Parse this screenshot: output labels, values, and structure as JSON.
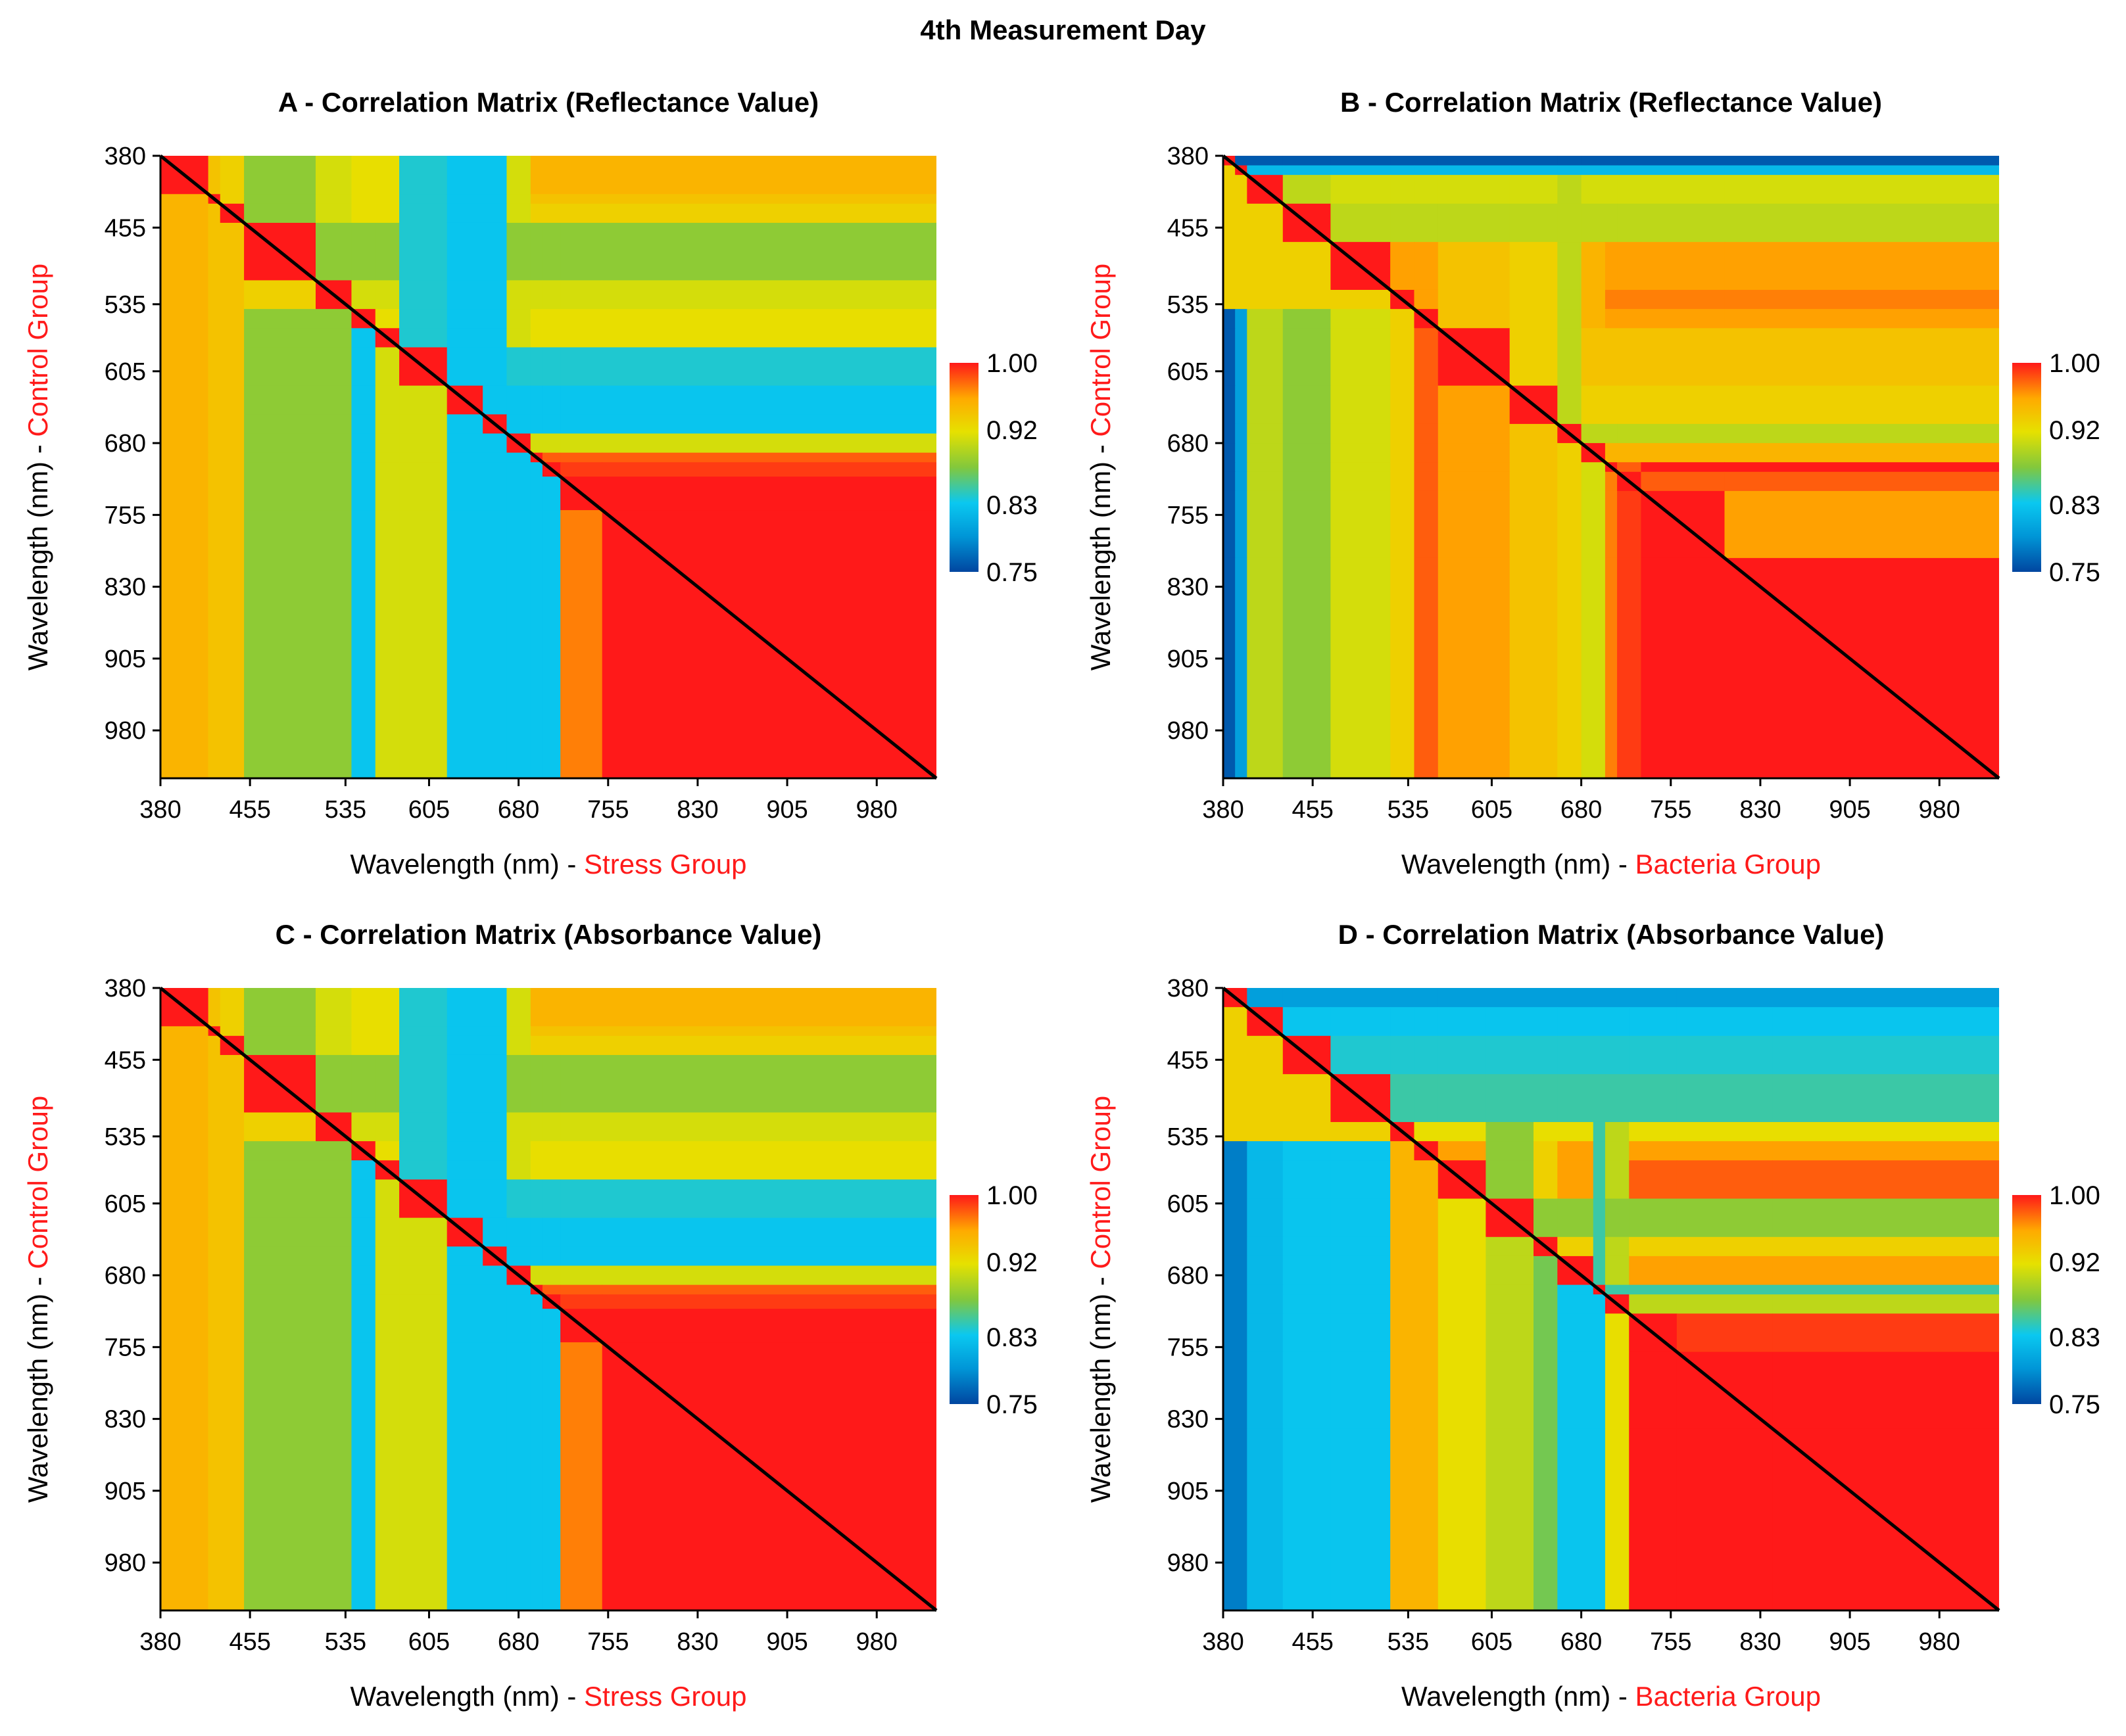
{
  "figure_title": "4th Measurement Day",
  "chart_data": [
    {
      "type": "heatmap",
      "title": "A - Correlation Matrix (Reflectance Value)",
      "xlabel": "Wavelength (nm) - ",
      "xlabel_group": "Stress Group",
      "ylabel": "Wavelength (nm) - ",
      "ylabel_group": "Control Group",
      "x_ticks": [
        "380",
        "455",
        "535",
        "605",
        "680",
        "755",
        "830",
        "905",
        "980"
      ],
      "y_ticks": [
        "380",
        "455",
        "535",
        "605",
        "680",
        "755",
        "830",
        "905",
        "980"
      ],
      "range": [
        380,
        1030
      ],
      "colorbar": {
        "ticks": [
          "1.00",
          "0.92",
          "0.83",
          "0.75"
        ],
        "min": 0.75,
        "max": 1.0
      },
      "diagonal_line": true,
      "band_edges": [
        380,
        420,
        430,
        450,
        510,
        540,
        560,
        580,
        620,
        650,
        670,
        690,
        700,
        715,
        750,
        1030
      ],
      "band_values": [
        0.95,
        0.94,
        0.93,
        0.88,
        0.91,
        0.92,
        0.92,
        0.84,
        0.83,
        0.83,
        0.91,
        0.98,
        0.99,
        1.0,
        1.0
      ],
      "lower_segments": [
        {
          "start": 380,
          "end": 720,
          "values": [
            0.95,
            0.94,
            0.94,
            0.88,
            0.88,
            0.83,
            0.91,
            0.91,
            0.83,
            0.83,
            0.83,
            0.83,
            0.83,
            0.97,
            0.99
          ]
        },
        {
          "start": 720,
          "end": 1030,
          "values": [
            1.0
          ]
        }
      ]
    },
    {
      "type": "heatmap",
      "title": "B - Correlation Matrix (Reflectance Value)",
      "xlabel": "Wavelength (nm) - ",
      "xlabel_group": "Bacteria Group",
      "ylabel": "Wavelength (nm) - ",
      "ylabel_group": "Control Group",
      "x_ticks": [
        "380",
        "455",
        "535",
        "605",
        "680",
        "755",
        "830",
        "905",
        "980"
      ],
      "y_ticks": [
        "380",
        "455",
        "535",
        "605",
        "680",
        "755",
        "830",
        "905",
        "980"
      ],
      "range": [
        380,
        1030
      ],
      "colorbar": {
        "ticks": [
          "1.00",
          "0.92",
          "0.83",
          "0.75"
        ],
        "min": 0.75,
        "max": 1.0
      },
      "diagonal_line": true,
      "band_edges": [
        380,
        390,
        400,
        430,
        470,
        520,
        540,
        560,
        620,
        660,
        680,
        700,
        710,
        730,
        800,
        1030
      ],
      "band_values": [
        0.76,
        0.82,
        0.91,
        0.9,
        0.96,
        0.97,
        0.96,
        0.94,
        0.93,
        0.9,
        0.95,
        1.0,
        0.98,
        0.96,
        0.95
      ],
      "lower_segments": [
        {
          "start": 380,
          "end": 730,
          "values": [
            0.76,
            0.8,
            0.9,
            0.88,
            0.91,
            0.93,
            0.98,
            0.96,
            0.94,
            0.93,
            0.91,
            0.97,
            0.99,
            0.99,
            0.99
          ]
        },
        {
          "start": 730,
          "end": 1030,
          "values": [
            1.0
          ]
        }
      ]
    },
    {
      "type": "heatmap",
      "title": "C - Correlation Matrix (Absorbance Value)",
      "xlabel": "Wavelength (nm) - ",
      "xlabel_group": "Stress Group",
      "ylabel": "Wavelength (nm) - ",
      "ylabel_group": "Control Group",
      "x_ticks": [
        "380",
        "455",
        "535",
        "605",
        "680",
        "755",
        "830",
        "905",
        "980"
      ],
      "y_ticks": [
        "380",
        "455",
        "535",
        "605",
        "680",
        "755",
        "830",
        "905",
        "980"
      ],
      "range": [
        380,
        1030
      ],
      "colorbar": {
        "ticks": [
          "1.00",
          "0.92",
          "0.83",
          "0.75"
        ],
        "min": 0.75,
        "max": 1.0
      },
      "diagonal_line": true,
      "band_edges": [
        380,
        420,
        430,
        450,
        510,
        540,
        560,
        580,
        620,
        650,
        670,
        690,
        700,
        715,
        750,
        1030
      ],
      "band_values": [
        0.95,
        0.94,
        0.93,
        0.88,
        0.91,
        0.92,
        0.92,
        0.84,
        0.83,
        0.83,
        0.91,
        0.98,
        0.99,
        1.0,
        1.0
      ],
      "lower_segments": [
        {
          "start": 380,
          "end": 720,
          "values": [
            0.95,
            0.94,
            0.94,
            0.88,
            0.88,
            0.83,
            0.91,
            0.91,
            0.83,
            0.83,
            0.83,
            0.83,
            0.83,
            0.97,
            0.99
          ]
        },
        {
          "start": 720,
          "end": 1030,
          "values": [
            1.0
          ]
        }
      ]
    },
    {
      "type": "heatmap",
      "title": "D - Correlation Matrix (Absorbance Value)",
      "xlabel": "Wavelength (nm) - ",
      "xlabel_group": "Bacteria Group",
      "ylabel": "Wavelength (nm) - ",
      "ylabel_group": "Control Group",
      "x_ticks": [
        "380",
        "455",
        "535",
        "605",
        "680",
        "755",
        "830",
        "905",
        "980"
      ],
      "y_ticks": [
        "380",
        "455",
        "535",
        "605",
        "680",
        "755",
        "830",
        "905",
        "980"
      ],
      "range": [
        380,
        1030
      ],
      "colorbar": {
        "ticks": [
          "1.00",
          "0.92",
          "0.83",
          "0.75"
        ],
        "min": 0.75,
        "max": 1.0
      },
      "diagonal_line": true,
      "band_edges": [
        380,
        400,
        430,
        470,
        520,
        540,
        560,
        600,
        640,
        660,
        690,
        700,
        720,
        760,
        840,
        1030
      ],
      "band_values": [
        0.8,
        0.83,
        0.84,
        0.85,
        0.92,
        0.96,
        0.98,
        0.88,
        0.93,
        0.96,
        0.85,
        0.9,
        0.99,
        1.0,
        1.0
      ],
      "lower_segments": [
        {
          "start": 380,
          "end": 710,
          "values": [
            0.78,
            0.82,
            0.83,
            0.83,
            0.95,
            0.95,
            0.92,
            0.9,
            0.87,
            0.83,
            0.83,
            0.92,
            0.99,
            1.0,
            1.0
          ]
        },
        {
          "start": 710,
          "end": 1030,
          "values": [
            1.0
          ]
        }
      ]
    }
  ]
}
